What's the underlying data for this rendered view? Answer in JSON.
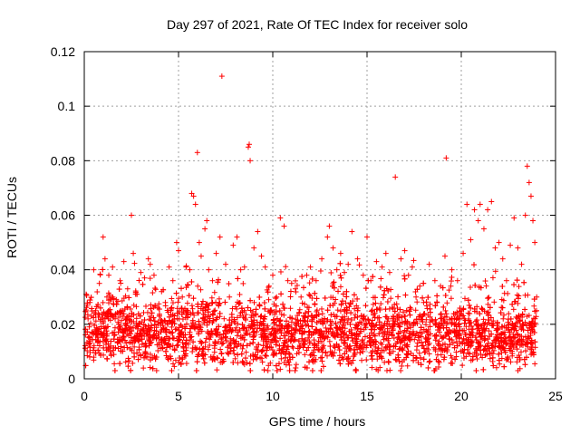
{
  "chart_data": {
    "type": "scatter",
    "title": "Day 297 of 2021, Rate Of TEC Index for receiver solo",
    "xlabel": "GPS time / hours",
    "ylabel": "ROTI / TECUs",
    "xlim": [
      0,
      25
    ],
    "ylim": [
      0,
      0.12
    ],
    "xticks": [
      0,
      5,
      10,
      15,
      20,
      25
    ],
    "xtick_labels": [
      "0",
      "5",
      "10",
      "15",
      "20",
      "25"
    ],
    "yticks": [
      0,
      0.02,
      0.04,
      0.06,
      0.08,
      0.1,
      0.12
    ],
    "ytick_labels": [
      "0",
      "0.02",
      "0.04",
      "0.06",
      "0.08",
      "0.1",
      "0.12"
    ],
    "grid": true,
    "marker": "+",
    "color": "#ff0000",
    "series": [
      {
        "name": "ROTI",
        "x": [
          0.1,
          0.2,
          0.3,
          0.5,
          0.6,
          0.8,
          1.0,
          1.1,
          1.2,
          1.3,
          1.5,
          1.7,
          1.9,
          2.1,
          2.3,
          2.5,
          2.6,
          2.8,
          3.0,
          3.2,
          3.4,
          3.5,
          3.7,
          3.9,
          4.1,
          4.3,
          4.5,
          4.7,
          4.9,
          5.0,
          5.2,
          5.4,
          5.5,
          5.6,
          5.7,
          5.8,
          5.9,
          6.0,
          6.1,
          6.2,
          6.4,
          6.5,
          6.6,
          6.8,
          7.0,
          7.2,
          7.3,
          7.5,
          7.7,
          7.9,
          8.1,
          8.3,
          8.5,
          8.7,
          8.75,
          8.8,
          9.0,
          9.2,
          9.4,
          9.6,
          9.8,
          10.0,
          10.2,
          10.4,
          10.6,
          10.8,
          11.0,
          11.2,
          11.5,
          11.8,
          12.0,
          12.3,
          12.6,
          12.9,
          13.0,
          13.2,
          13.4,
          13.6,
          13.8,
          14.0,
          14.2,
          14.5,
          14.8,
          15.0,
          15.2,
          15.5,
          15.8,
          16.0,
          16.2,
          16.5,
          16.8,
          17.0,
          17.2,
          17.4,
          17.6,
          17.8,
          18.0,
          18.3,
          18.6,
          18.9,
          19.2,
          19.5,
          19.8,
          20.1,
          20.3,
          20.5,
          20.7,
          20.9,
          21.0,
          21.2,
          21.4,
          21.6,
          21.8,
          22.0,
          22.2,
          22.4,
          22.6,
          22.8,
          23.0,
          23.2,
          23.4,
          23.5,
          23.6,
          23.7,
          23.8,
          23.9,
          24.0
        ],
        "y": [
          0.031,
          0.022,
          0.028,
          0.04,
          0.025,
          0.035,
          0.052,
          0.044,
          0.03,
          0.038,
          0.041,
          0.029,
          0.036,
          0.043,
          0.033,
          0.06,
          0.046,
          0.031,
          0.039,
          0.037,
          0.044,
          0.042,
          0.038,
          0.026,
          0.032,
          0.028,
          0.041,
          0.036,
          0.05,
          0.047,
          0.03,
          0.041,
          0.025,
          0.04,
          0.068,
          0.067,
          0.064,
          0.083,
          0.05,
          0.045,
          0.055,
          0.058,
          0.04,
          0.036,
          0.046,
          0.052,
          0.111,
          0.042,
          0.03,
          0.049,
          0.052,
          0.04,
          0.041,
          0.085,
          0.086,
          0.08,
          0.048,
          0.054,
          0.045,
          0.041,
          0.034,
          0.038,
          0.03,
          0.059,
          0.056,
          0.036,
          0.035,
          0.033,
          0.03,
          0.038,
          0.041,
          0.036,
          0.044,
          0.052,
          0.056,
          0.048,
          0.04,
          0.046,
          0.039,
          0.042,
          0.054,
          0.044,
          0.038,
          0.052,
          0.036,
          0.043,
          0.041,
          0.046,
          0.039,
          0.074,
          0.044,
          0.047,
          0.038,
          0.041,
          0.03,
          0.034,
          0.028,
          0.042,
          0.036,
          0.034,
          0.081,
          0.04,
          0.036,
          0.046,
          0.064,
          0.051,
          0.062,
          0.058,
          0.064,
          0.055,
          0.062,
          0.065,
          0.048,
          0.05,
          0.044,
          0.036,
          0.049,
          0.059,
          0.048,
          0.042,
          0.06,
          0.078,
          0.072,
          0.067,
          0.058,
          0.05,
          0.03
        ]
      }
    ]
  }
}
